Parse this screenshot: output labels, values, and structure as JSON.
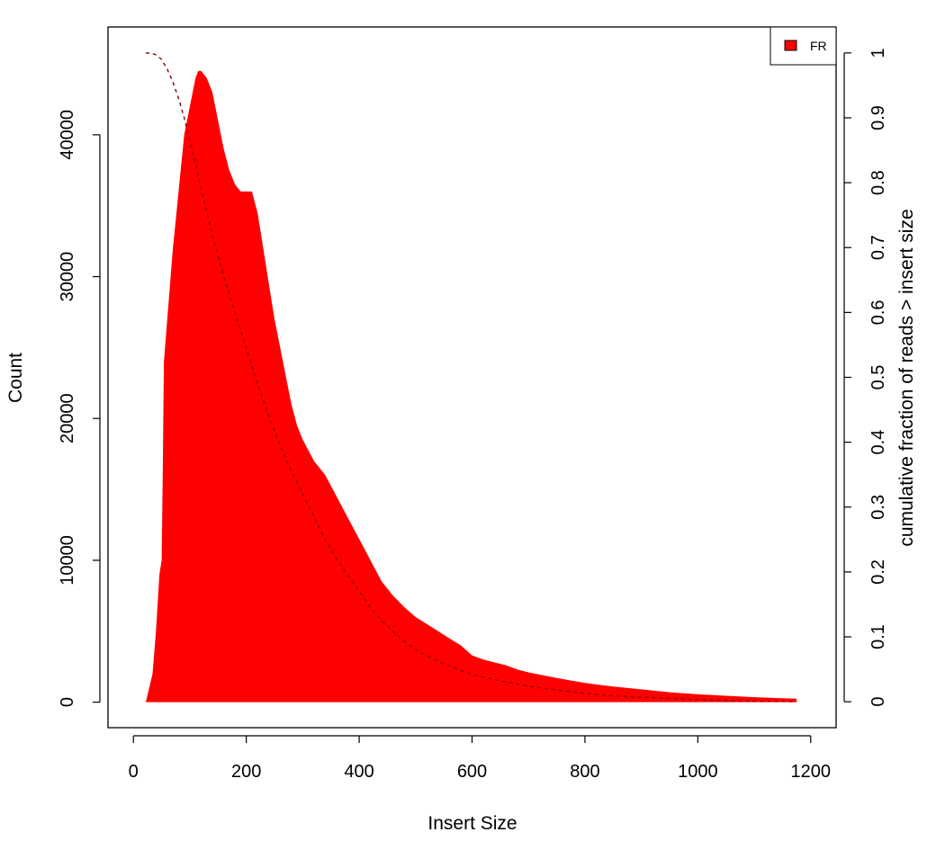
{
  "chart_data": {
    "type": "area",
    "title": "",
    "xlabel": "Insert Size",
    "ylabel": "Count",
    "y2label": "cumulative fraction of reads > insert size",
    "xlim": [
      -45,
      1245
    ],
    "ylim": [
      -1800,
      47600
    ],
    "y2lim": [
      -0.04,
      1.04
    ],
    "xticks": [
      0,
      200,
      400,
      600,
      800,
      1000,
      1200
    ],
    "yticks": [
      0,
      10000,
      20000,
      30000,
      40000
    ],
    "y2ticks": [
      0,
      0.1,
      0.2,
      0.3,
      0.4,
      0.5,
      0.6,
      0.7,
      0.8,
      0.9,
      1
    ],
    "x_tick_labels": [
      "0",
      "200",
      "400",
      "600",
      "800",
      "1000",
      "1200"
    ],
    "y_tick_labels": [
      "0",
      "10000",
      "20000",
      "30000",
      "40000"
    ],
    "y2_tick_labels": [
      "0",
      "0.1",
      "0.2",
      "0.3",
      "0.4",
      "0.5",
      "0.6",
      "0.7",
      "0.8",
      "0.9",
      "1"
    ],
    "legend": {
      "position": "top-right",
      "entries": [
        {
          "label": "FR",
          "color": "#ff0000"
        }
      ]
    },
    "colors": {
      "histogram": "#ff0000",
      "cumulative": "#8b0000"
    },
    "series": [
      {
        "name": "FR",
        "kind": "histogram",
        "x": [
          22,
          28,
          34,
          40,
          46,
          50,
          52,
          54,
          58,
          62,
          66,
          70,
          75,
          80,
          85,
          90,
          95,
          100,
          105,
          110,
          115,
          120,
          130,
          140,
          150,
          160,
          170,
          180,
          190,
          200,
          210,
          220,
          230,
          240,
          250,
          260,
          270,
          280,
          290,
          300,
          320,
          340,
          360,
          380,
          400,
          420,
          440,
          460,
          480,
          500,
          520,
          540,
          560,
          580,
          600,
          620,
          640,
          660,
          680,
          700,
          750,
          800,
          850,
          900,
          950,
          1000,
          1050,
          1100,
          1150,
          1175
        ],
        "values": [
          0,
          1000,
          2000,
          5000,
          9000,
          10000,
          16000,
          24000,
          26000,
          28000,
          30000,
          32000,
          34000,
          36000,
          38000,
          40000,
          41000,
          42000,
          43000,
          44000,
          44500,
          44500,
          44000,
          43000,
          41000,
          39000,
          37500,
          36500,
          36000,
          36000,
          36000,
          34500,
          32000,
          29500,
          27000,
          25000,
          23000,
          21000,
          19500,
          18500,
          17000,
          16000,
          14500,
          13000,
          11500,
          10000,
          8500,
          7500,
          6700,
          6000,
          5500,
          5000,
          4500,
          4000,
          3300,
          3000,
          2800,
          2600,
          2300,
          2100,
          1700,
          1350,
          1100,
          900,
          700,
          550,
          450,
          350,
          280,
          250
        ]
      },
      {
        "name": "",
        "kind": "cumulative",
        "x": [
          22,
          30,
          40,
          50,
          60,
          70,
          80,
          90,
          100,
          110,
          120,
          140,
          160,
          180,
          200,
          220,
          240,
          260,
          280,
          300,
          320,
          340,
          360,
          380,
          400,
          420,
          440,
          460,
          480,
          500,
          550,
          600,
          650,
          700,
          750,
          800,
          850,
          900,
          950,
          1000,
          1050,
          1100,
          1150,
          1175
        ],
        "values": [
          1.0,
          1.0,
          0.997,
          0.99,
          0.975,
          0.955,
          0.93,
          0.9,
          0.865,
          0.83,
          0.79,
          0.72,
          0.655,
          0.6,
          0.545,
          0.49,
          0.44,
          0.395,
          0.355,
          0.32,
          0.285,
          0.25,
          0.22,
          0.195,
          0.17,
          0.145,
          0.125,
          0.108,
          0.093,
          0.08,
          0.058,
          0.042,
          0.032,
          0.024,
          0.018,
          0.013,
          0.009,
          0.007,
          0.005,
          0.003,
          0.002,
          0.001,
          0.0005,
          0.0
        ]
      }
    ]
  }
}
